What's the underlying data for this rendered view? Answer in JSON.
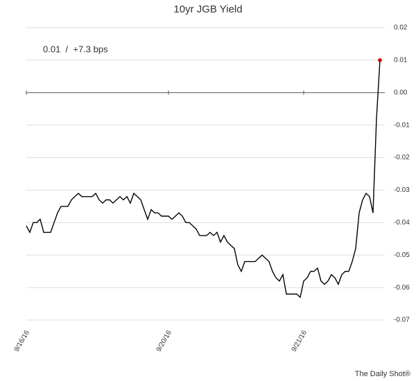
{
  "chart_data": {
    "type": "line",
    "title": "10yr JGB Yield",
    "annotation": "0.01  /  +7.3 bps",
    "source": "The Daily Shot®",
    "categories": [
      "9/16/16",
      null,
      null,
      null,
      null,
      null,
      null,
      null,
      null,
      null,
      null,
      null,
      null,
      null,
      null,
      null,
      null,
      null,
      null,
      null,
      null,
      null,
      null,
      null,
      null,
      null,
      null,
      null,
      null,
      null,
      null,
      null,
      null,
      null,
      null,
      null,
      null,
      null,
      null,
      null,
      null,
      "9/20/16",
      null,
      null,
      null,
      null,
      null,
      null,
      null,
      null,
      null,
      null,
      null,
      null,
      null,
      null,
      null,
      null,
      null,
      null,
      null,
      null,
      null,
      null,
      null,
      null,
      null,
      null,
      null,
      null,
      null,
      null,
      null,
      null,
      null,
      null,
      null,
      null,
      null,
      null,
      "9/21/16",
      null,
      null,
      null,
      null,
      null,
      null,
      null,
      null,
      null,
      null,
      null,
      null,
      null,
      null,
      null,
      null,
      null,
      null,
      null,
      null,
      null,
      null
    ],
    "series": [
      {
        "name": "10yr JGB Yield",
        "color": "#000000",
        "end_marker_color": "#c00000",
        "values": [
          -0.041,
          -0.043,
          -0.04,
          -0.04,
          -0.039,
          -0.043,
          -0.043,
          -0.043,
          -0.04,
          -0.037,
          -0.035,
          -0.035,
          -0.035,
          -0.033,
          -0.032,
          -0.031,
          -0.032,
          -0.032,
          -0.032,
          -0.032,
          -0.031,
          -0.033,
          -0.034,
          -0.033,
          -0.033,
          -0.034,
          -0.033,
          -0.032,
          -0.033,
          -0.032,
          -0.034,
          -0.031,
          -0.032,
          -0.033,
          -0.036,
          -0.039,
          -0.036,
          -0.037,
          -0.037,
          -0.038,
          -0.038,
          -0.038,
          -0.039,
          -0.038,
          -0.037,
          -0.038,
          -0.04,
          -0.04,
          -0.041,
          -0.042,
          -0.044,
          -0.044,
          -0.044,
          -0.043,
          -0.044,
          -0.043,
          -0.046,
          -0.044,
          -0.046,
          -0.047,
          -0.048,
          -0.053,
          -0.055,
          -0.052,
          -0.052,
          -0.052,
          -0.052,
          -0.051,
          -0.05,
          -0.051,
          -0.052,
          -0.055,
          -0.057,
          -0.058,
          -0.056,
          -0.062,
          -0.062,
          -0.062,
          -0.062,
          -0.063,
          -0.058,
          -0.057,
          -0.055,
          -0.055,
          -0.054,
          -0.058,
          -0.059,
          -0.058,
          -0.056,
          -0.057,
          -0.059,
          -0.056,
          -0.055,
          -0.055,
          -0.052,
          -0.048,
          -0.037,
          -0.033,
          -0.031,
          -0.032,
          -0.037,
          -0.008,
          0.01
        ]
      }
    ],
    "ylim": [
      -0.07,
      0.02
    ],
    "yticks": [
      0.02,
      0.01,
      {
        "value": 0,
        "label": "0.00"
      },
      -0.01,
      -0.02,
      -0.03,
      -0.04,
      -0.05,
      -0.06,
      -0.07
    ],
    "grid": true
  }
}
